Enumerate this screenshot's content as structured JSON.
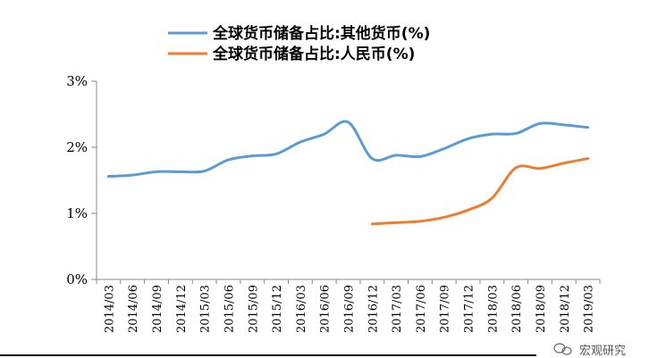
{
  "chart_data": {
    "type": "line",
    "title": "",
    "xlabel": "",
    "ylabel": "",
    "ylim": [
      0,
      3
    ],
    "y_ticks": [
      "0%",
      "1%",
      "2%",
      "3%"
    ],
    "grid": false,
    "legend_position": "top",
    "categories": [
      "2014/03",
      "2014/06",
      "2014/09",
      "2014/12",
      "2015/03",
      "2015/06",
      "2015/09",
      "2015/12",
      "2016/03",
      "2016/06",
      "2016/09",
      "2016/12",
      "2017/03",
      "2017/06",
      "2017/09",
      "2017/12",
      "2018/03",
      "2018/06",
      "2018/09",
      "2018/12",
      "2019/03"
    ],
    "series": [
      {
        "name": "全球货币储备占比:其他货币(%)",
        "color": "#5B9BD5",
        "values": [
          1.56,
          1.58,
          1.63,
          1.63,
          1.64,
          1.81,
          1.87,
          1.9,
          2.08,
          2.2,
          2.38,
          1.83,
          1.88,
          1.86,
          1.98,
          2.13,
          2.2,
          2.21,
          2.36,
          2.34,
          2.3
        ]
      },
      {
        "name": "全球货币储备占比:人民币(%)",
        "color": "#ED7D31",
        "values": [
          null,
          null,
          null,
          null,
          null,
          null,
          null,
          null,
          null,
          null,
          null,
          0.84,
          0.86,
          0.88,
          0.94,
          1.05,
          1.23,
          1.69,
          1.68,
          1.76,
          1.83
        ]
      }
    ]
  },
  "watermark": {
    "text": "宏观研究"
  }
}
